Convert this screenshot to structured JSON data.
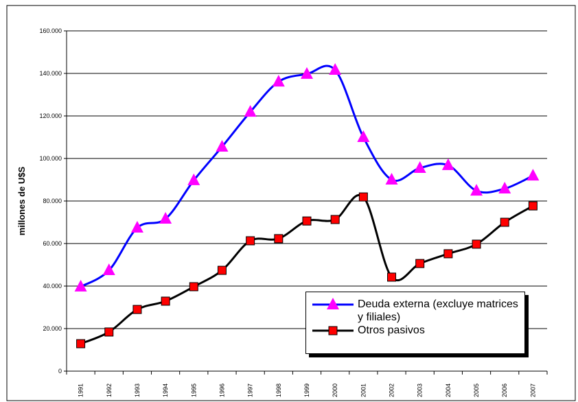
{
  "chart_data": {
    "type": "line",
    "y_label": "millones de U$S",
    "categories": [
      "1991",
      "1992",
      "1993",
      "1994",
      "1995",
      "1996",
      "1997",
      "1998",
      "1999",
      "2000",
      "2001",
      "2002",
      "2003",
      "2004",
      "2005",
      "2006",
      "2007"
    ],
    "series": [
      {
        "name": "Deuda externa (excluye matrices y filiales)",
        "color": "#0000ff",
        "marker_color": "#ff00ff",
        "marker": "triangle",
        "values": [
          39700,
          47400,
          67400,
          71600,
          89700,
          105500,
          121900,
          136100,
          139700,
          141600,
          110000,
          90000,
          95500,
          96800,
          84800,
          85800,
          91900
        ]
      },
      {
        "name": "Otros pasivos",
        "color": "#000000",
        "marker_color": "#ff0000",
        "marker": "square",
        "values": [
          12900,
          18400,
          29000,
          32900,
          39700,
          47400,
          61300,
          62300,
          70600,
          71300,
          81900,
          44200,
          50600,
          55200,
          59700,
          70000,
          77700
        ]
      }
    ],
    "ylim": [
      0,
      160000
    ],
    "yticks": [
      0,
      {
        "value": 20000,
        "label": "20.000"
      },
      {
        "value": 40000,
        "label": "40.000"
      },
      {
        "value": 60000,
        "label": "60.000"
      },
      {
        "value": 80000,
        "label": "80.000"
      },
      {
        "value": 100000,
        "label": "100.000"
      },
      {
        "value": 120000,
        "label": "120.000"
      },
      {
        "value": 140000,
        "label": "140.000"
      },
      {
        "value": 160000,
        "label": "160.000"
      }
    ],
    "grid": true
  }
}
